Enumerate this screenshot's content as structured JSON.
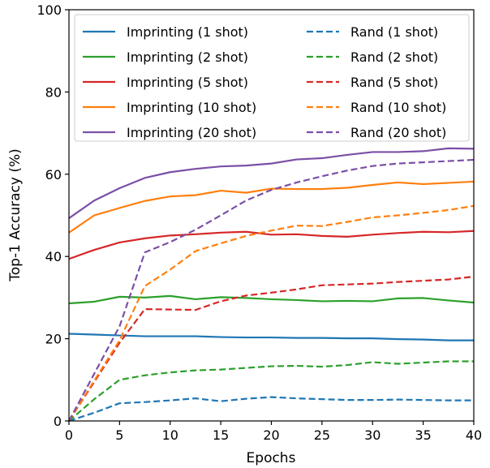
{
  "chart_data": {
    "type": "line",
    "title": "",
    "xlabel": "Epochs",
    "ylabel": "Top-1 Accuracy (%)",
    "xlim": [
      0,
      40
    ],
    "ylim": [
      0,
      100
    ],
    "xticks": [
      0,
      5,
      10,
      15,
      20,
      25,
      30,
      35,
      40
    ],
    "yticks": [
      0,
      20,
      40,
      60,
      80,
      100
    ],
    "grid": false,
    "legend_position": "top",
    "legend_columns": 2,
    "x": [
      0,
      2.5,
      5,
      7.5,
      10,
      12.5,
      15,
      17.5,
      20,
      22.5,
      25,
      27.5,
      30,
      32.5,
      35,
      37.5,
      40
    ],
    "series": [
      {
        "name": "Imprinting (1 shot)",
        "color": "#1f77b4",
        "linestyle": "solid",
        "values": [
          21.2,
          21.0,
          20.8,
          20.6,
          20.6,
          20.6,
          20.4,
          20.3,
          20.3,
          20.2,
          20.2,
          20.1,
          20.1,
          19.9,
          19.8,
          19.6,
          19.6
        ]
      },
      {
        "name": "Imprinting (2 shot)",
        "color": "#2ca02c",
        "linestyle": "solid",
        "values": [
          28.6,
          29.0,
          30.2,
          30.0,
          30.4,
          29.6,
          30.1,
          29.9,
          29.6,
          29.4,
          29.1,
          29.2,
          29.1,
          29.8,
          29.9,
          29.3,
          28.8
        ]
      },
      {
        "name": "Imprinting (5 shot)",
        "color": "#d62728",
        "linestyle": "solid",
        "values": [
          39.4,
          41.6,
          43.4,
          44.4,
          45.1,
          45.4,
          45.8,
          46.0,
          45.3,
          45.4,
          45.0,
          44.8,
          45.3,
          45.7,
          46.0,
          45.9,
          46.2
        ]
      },
      {
        "name": "Imprinting (10 shot)",
        "color": "#ff7f0e",
        "linestyle": "solid",
        "values": [
          45.8,
          50.0,
          51.8,
          53.5,
          54.6,
          54.9,
          56.0,
          55.5,
          56.5,
          56.4,
          56.4,
          56.7,
          57.4,
          58.0,
          57.6,
          57.9,
          58.2
        ]
      },
      {
        "name": "Imprinting (20 shot)",
        "color": "#7b4fa6",
        "linestyle": "solid",
        "values": [
          49.3,
          53.6,
          56.6,
          59.1,
          60.5,
          61.3,
          61.9,
          62.1,
          62.6,
          63.6,
          63.9,
          64.7,
          65.4,
          65.4,
          65.6,
          66.3,
          66.2
        ]
      },
      {
        "name": "Rand (1 shot)",
        "color": "#1f77b4",
        "linestyle": "dashed",
        "values": [
          0,
          2.0,
          4.3,
          4.6,
          5.0,
          5.5,
          4.8,
          5.4,
          5.8,
          5.5,
          5.3,
          5.1,
          5.1,
          5.2,
          5.1,
          5.0,
          5.0
        ]
      },
      {
        "name": "Rand (2 shot)",
        "color": "#2ca02c",
        "linestyle": "dashed",
        "values": [
          0,
          5.3,
          10.0,
          11.1,
          11.8,
          12.3,
          12.5,
          12.9,
          13.3,
          13.4,
          13.2,
          13.6,
          14.3,
          13.9,
          14.2,
          14.5,
          14.5
        ]
      },
      {
        "name": "Rand (5 shot)",
        "color": "#d62728",
        "linestyle": "dashed",
        "values": [
          0,
          9.5,
          19.0,
          27.2,
          27.1,
          27.0,
          29.1,
          30.5,
          31.2,
          32.0,
          33.0,
          33.2,
          33.4,
          33.8,
          34.1,
          34.4,
          35.1
        ]
      },
      {
        "name": "Rand (10 shot)",
        "color": "#ff7f0e",
        "linestyle": "dashed",
        "values": [
          0,
          9.8,
          19.6,
          32.8,
          36.8,
          41.3,
          43.2,
          45.0,
          46.3,
          47.5,
          47.4,
          48.4,
          49.5,
          50.0,
          50.6,
          51.3,
          52.3
        ]
      },
      {
        "name": "Rand (20 shot)",
        "color": "#7b4fa6",
        "linestyle": "dashed",
        "values": [
          0,
          11.5,
          23.0,
          41.0,
          43.5,
          46.5,
          50.0,
          53.6,
          56.2,
          58.0,
          59.5,
          60.9,
          62.0,
          62.6,
          62.9,
          63.2,
          63.5
        ]
      }
    ]
  }
}
